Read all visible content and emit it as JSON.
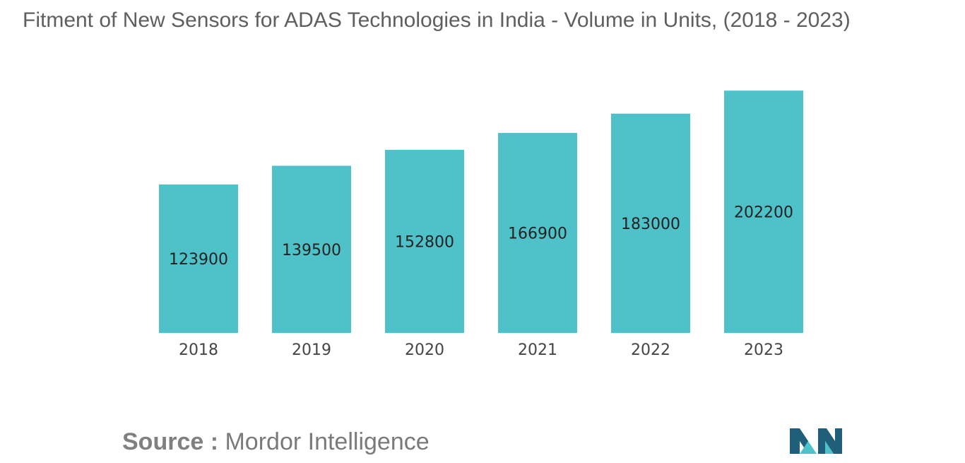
{
  "title": "Fitment of New Sensors for ADAS Technologies in India - Volume in Units, (2018 - 2023)",
  "source": {
    "label": "Source",
    "separator": " : ",
    "value": "Mordor Intelligence"
  },
  "colors": {
    "bar": "#4fc1c9",
    "title": "#5f5f5f",
    "text": "#222222",
    "logo_dark": "#1f5f7a",
    "logo_light": "#4fc1c9"
  },
  "logo": {
    "icon": "mordor-intelligence-logo-icon"
  },
  "chart_data": {
    "type": "bar",
    "categories": [
      "2018",
      "2019",
      "2020",
      "2021",
      "2022",
      "2023"
    ],
    "values": [
      123900,
      139500,
      152800,
      166900,
      183000,
      202200
    ],
    "data_labels": [
      "123900",
      "139500",
      "152800",
      "166900",
      "183000",
      "202200"
    ],
    "title": "Fitment of New Sensors for ADAS Technologies in India - Volume in Units, (2018 - 2023)",
    "xlabel": "",
    "ylabel": "",
    "ylim": [
      0,
      210000
    ],
    "grid": false,
    "legend": "none"
  }
}
